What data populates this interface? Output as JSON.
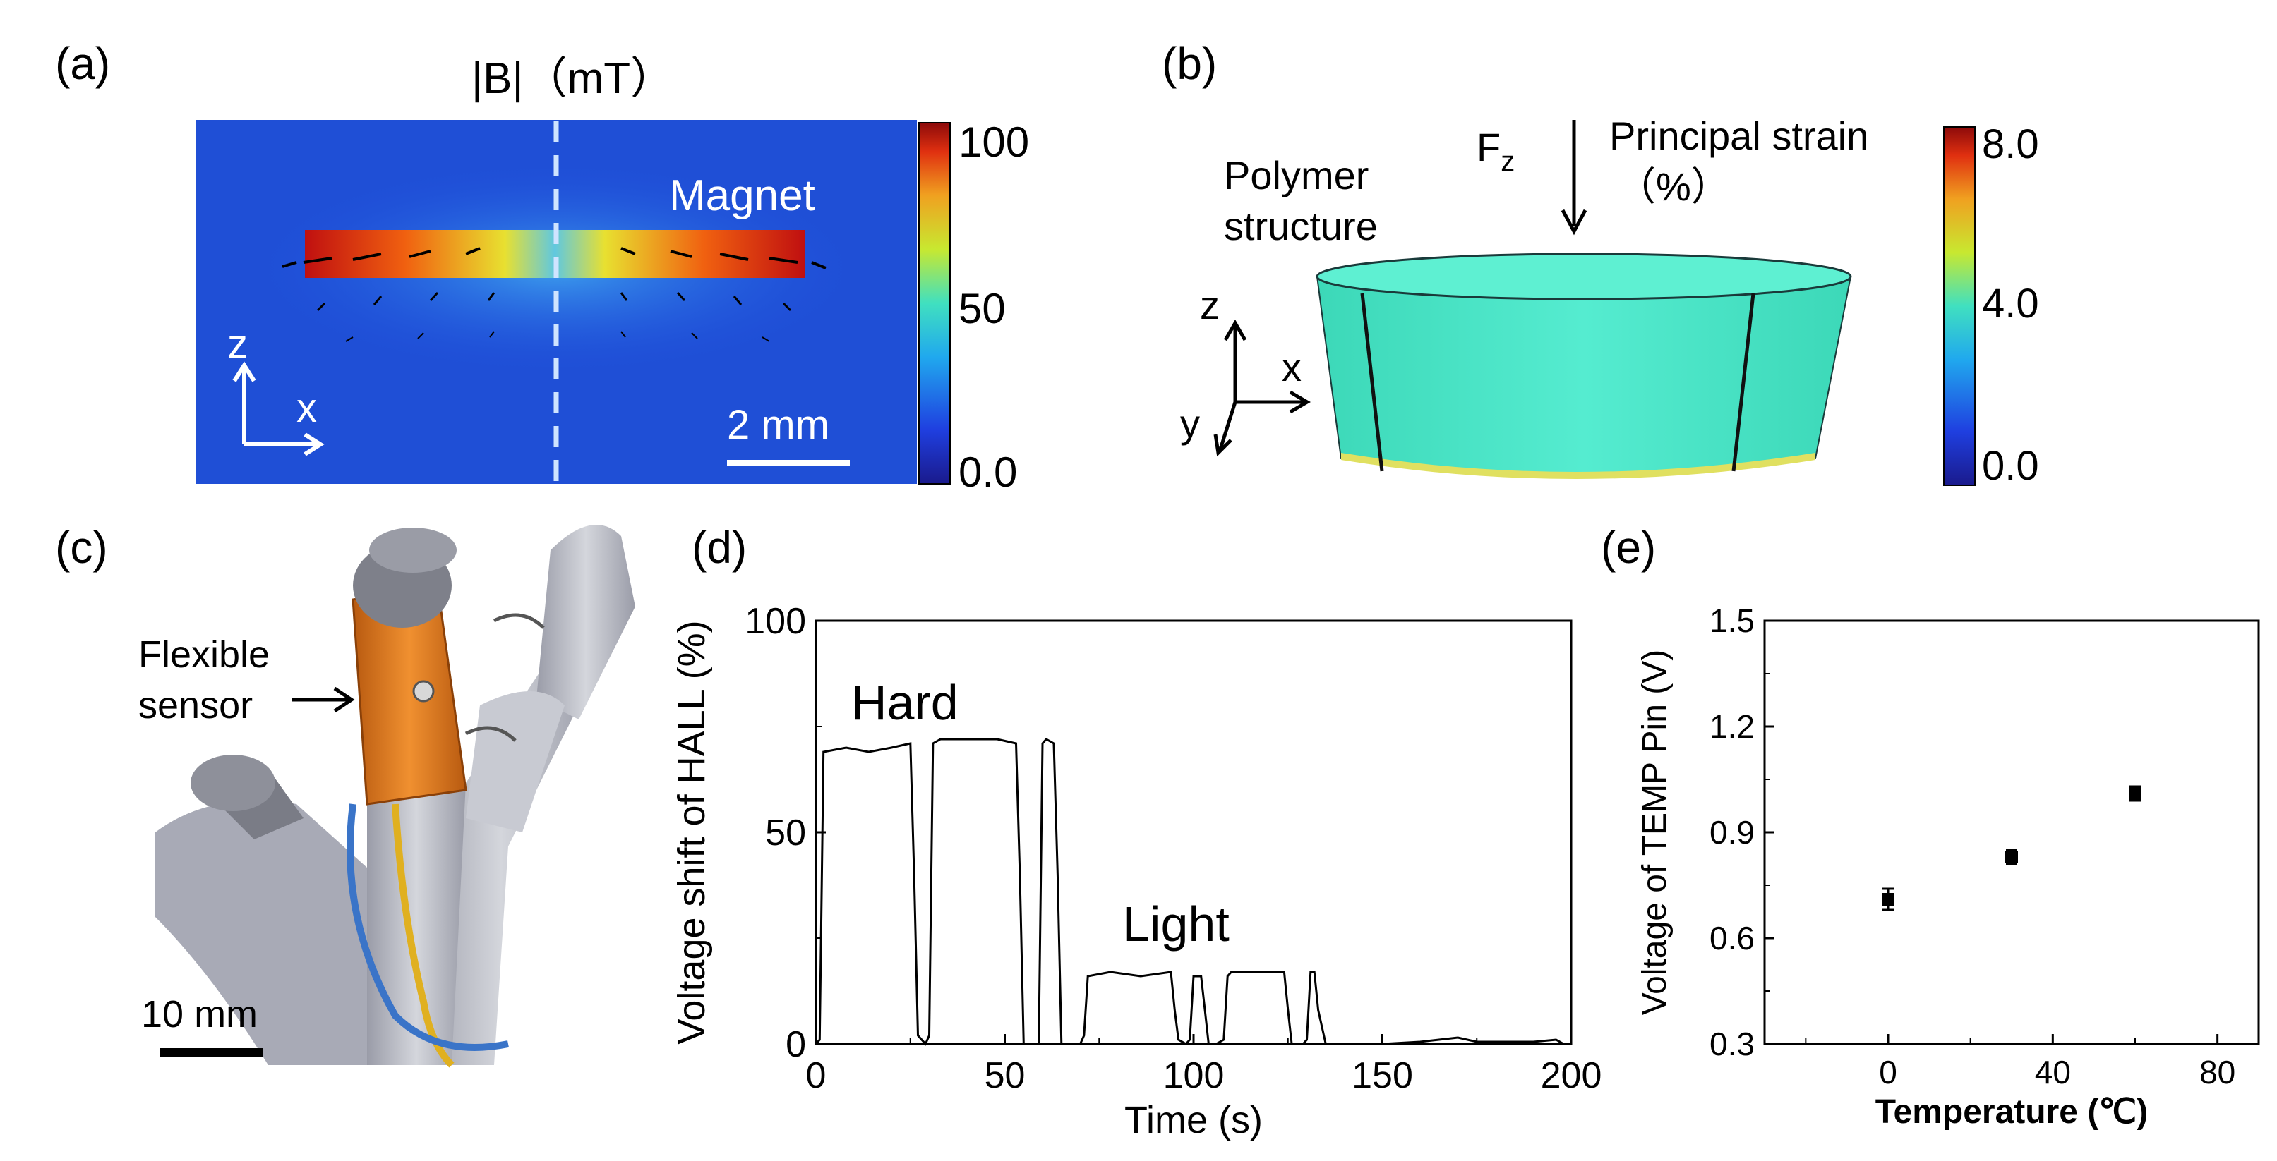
{
  "panels": {
    "a": {
      "label": "(a)",
      "title": "|B|（mT）",
      "magnet_label": "Magnet",
      "axis_z": "z",
      "axis_x": "x",
      "scalebar_label": "2 mm",
      "colorbar_ticks": [
        "100",
        "50",
        "0.0"
      ],
      "colors": {
        "background": "#1f4fd6",
        "magnet_hot": "#c01010",
        "magnet_mid": "#f0d020",
        "dashed_line": "#cfe4ff"
      }
    },
    "b": {
      "label": "(b)",
      "text_polymer_1": "Polymer",
      "text_polymer_2": "structure",
      "force_main": "F",
      "force_sub": "z",
      "strain_title_1": "Principal strain",
      "strain_title_2": "（%）",
      "axis_z": "z",
      "axis_x": "x",
      "axis_y": "y",
      "colorbar_ticks": [
        "8.0",
        "4.0",
        "0.0"
      ],
      "colors": {
        "cylinder": "#45e8c8",
        "cylinder_top": "#5ef0d2"
      }
    },
    "c": {
      "label": "(c)",
      "sensor_label_1": "Flexible",
      "sensor_label_2": "sensor",
      "scalebar_label": "10 mm",
      "colors": {
        "sensor": "#d9781a",
        "finger": "#b7b9c2",
        "wire_yellow": "#e0b020",
        "wire_blue": "#3a74c8"
      }
    },
    "d": {
      "label": "(d)",
      "annotation_hard": "Hard",
      "annotation_light": "Light"
    },
    "e": {
      "label": "(e)"
    }
  },
  "chart_data": [
    {
      "id": "d",
      "type": "line",
      "xlabel": "Time (s)",
      "ylabel": "Voltage shift of HALL (%)",
      "xlim": [
        0,
        200
      ],
      "ylim": [
        0,
        100
      ],
      "xticks": [
        "0",
        "50",
        "100",
        "150",
        "200"
      ],
      "yticks": [
        "0",
        "50",
        "100"
      ],
      "series": [
        {
          "x": [
            0,
            1,
            2,
            8,
            14,
            20,
            25,
            26,
            27,
            29,
            30,
            31,
            33,
            40,
            48,
            53,
            54,
            55,
            59,
            60,
            61,
            63,
            64,
            65,
            66,
            70,
            71,
            72,
            78,
            86,
            94,
            95,
            96,
            98,
            99,
            100,
            102,
            103,
            104,
            106,
            108,
            109,
            110,
            118,
            124,
            125,
            126,
            129,
            130,
            131,
            132,
            133,
            135,
            140,
            150,
            160,
            165,
            170,
            175,
            180,
            190,
            196,
            198,
            200
          ],
          "y": [
            0,
            1,
            69,
            70,
            69,
            70,
            71,
            40,
            2,
            0,
            2,
            71,
            72,
            72,
            72,
            71,
            40,
            0,
            0,
            71,
            72,
            71,
            40,
            0,
            0,
            0,
            2,
            16,
            17,
            16,
            17,
            8,
            1,
            0,
            1,
            16,
            16,
            8,
            0,
            0,
            1,
            16,
            17,
            17,
            17,
            8,
            0,
            0,
            1,
            17,
            17,
            8,
            0,
            0,
            0,
            0.5,
            1,
            1.5,
            0.5,
            0.5,
            0.5,
            1,
            0,
            0
          ]
        }
      ]
    },
    {
      "id": "e",
      "type": "scatter",
      "xlabel": "Temperature (℃)",
      "ylabel": "Voltage of TEMP Pin (V)",
      "xlim": [
        -30,
        90
      ],
      "ylim": [
        0.3,
        1.5
      ],
      "xticks": [
        "0",
        "40",
        "80"
      ],
      "yticks": [
        "0.3",
        "0.6",
        "0.9",
        "1.2",
        "1.5"
      ],
      "series": [
        {
          "x": [
            0,
            30,
            60
          ],
          "y": [
            0.71,
            0.83,
            1.01
          ],
          "error": [
            0.03,
            0.02,
            0.02
          ]
        }
      ]
    }
  ]
}
